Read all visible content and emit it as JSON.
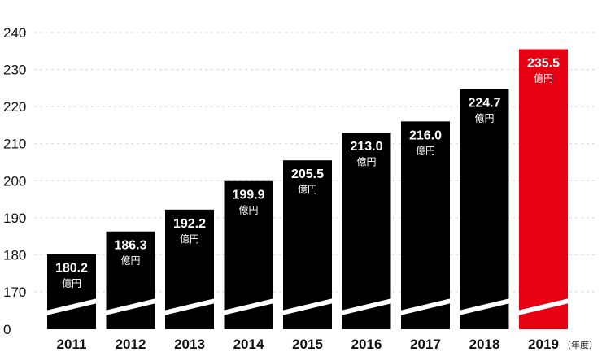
{
  "chart_data": {
    "type": "bar",
    "categories": [
      "2011",
      "2012",
      "2013",
      "2014",
      "2015",
      "2016",
      "2017",
      "2018",
      "2019"
    ],
    "values": [
      180.2,
      186.3,
      192.2,
      199.9,
      205.5,
      213.0,
      216.0,
      224.7,
      235.5
    ],
    "value_labels": [
      "180.2",
      "186.3",
      "192.2",
      "199.9",
      "205.5",
      "213.0",
      "216.0",
      "224.7",
      "235.5"
    ],
    "value_unit": "億円",
    "x_unit": "（年度）",
    "y_ticks": [
      {
        "value": 240,
        "label": "240"
      },
      {
        "value": 230,
        "label": "230"
      },
      {
        "value": 220,
        "label": "220"
      },
      {
        "value": 210,
        "label": "210"
      },
      {
        "value": 200,
        "label": "200"
      },
      {
        "value": 190,
        "label": "190"
      },
      {
        "value": 180,
        "label": "180"
      },
      {
        "value": 170,
        "label": "170"
      },
      {
        "value": 0,
        "label": "0"
      }
    ],
    "ylim": [
      160,
      240
    ],
    "axis_break": true,
    "grid": true,
    "bar_color": "#000000",
    "highlight_color": "#e60012",
    "highlight_index": 8,
    "title": "",
    "xlabel": "",
    "ylabel": ""
  }
}
